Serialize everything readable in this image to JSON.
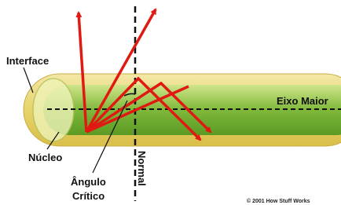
{
  "labels": {
    "interface": "Interface",
    "core": "Núcleo",
    "critical_angle": [
      "Ângulo",
      "Crítico"
    ],
    "normal": "Normal",
    "major_axis": "Eixo Maior",
    "copyright": "© 2001 How Stuff Works"
  }
}
